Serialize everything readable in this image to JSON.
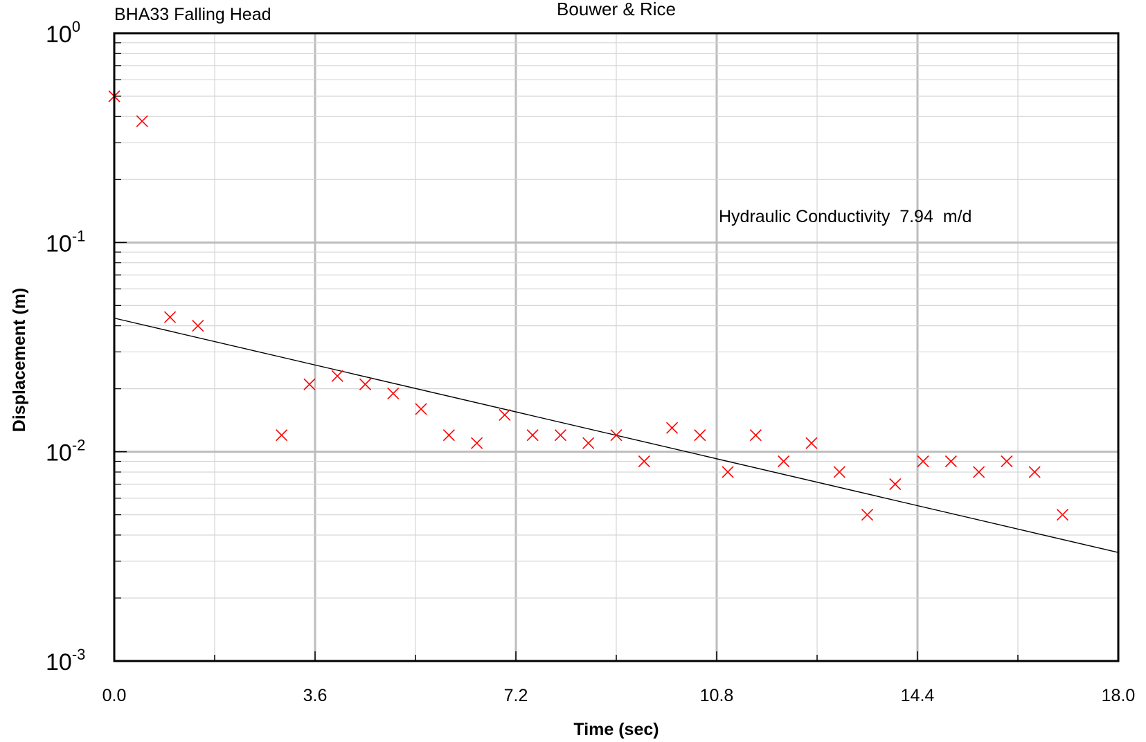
{
  "chart_data": {
    "type": "scatter",
    "title": "Bouwer & Rice",
    "subtitle": "BHA33 Falling Head",
    "xlabel": "Time (sec)",
    "ylabel": "Displacement (m)",
    "xlim": [
      0,
      18
    ],
    "ylim": [
      0.001,
      1
    ],
    "yscale": "log",
    "grid": true,
    "x_ticks": [
      "0.0",
      "3.6",
      "7.2",
      "10.8",
      "14.4",
      "18.0"
    ],
    "x_tick_values": [
      0,
      3.6,
      7.2,
      10.8,
      14.4,
      18.0
    ],
    "y_ticks": [
      {
        "base": "10",
        "exp": "0",
        "value": 1
      },
      {
        "base": "10",
        "exp": "-1",
        "value": 0.1
      },
      {
        "base": "10",
        "exp": "-2",
        "value": 0.01
      },
      {
        "base": "10",
        "exp": "-3",
        "value": 0.001
      }
    ],
    "annotation": "Hydraulic Conductivity  7.94  m/d",
    "marker_color": "#ff0000",
    "fit_line_color": "#000000",
    "observed": {
      "marker": "x",
      "x": [
        0.0,
        0.5,
        1.0,
        1.5,
        3.0,
        3.5,
        4.0,
        4.5,
        5.0,
        5.5,
        6.0,
        6.5,
        7.0,
        7.5,
        8.0,
        8.5,
        9.0,
        9.5,
        10.0,
        10.5,
        11.0,
        11.5,
        12.0,
        12.5,
        13.0,
        13.5,
        14.0,
        14.5,
        15.0,
        15.5,
        16.0,
        16.5,
        17.0
      ],
      "y": [
        0.5,
        0.38,
        0.044,
        0.04,
        0.012,
        0.021,
        0.023,
        0.021,
        0.019,
        0.016,
        0.012,
        0.011,
        0.015,
        0.012,
        0.012,
        0.011,
        0.012,
        0.009,
        0.013,
        0.012,
        0.008,
        0.012,
        0.009,
        0.011,
        0.008,
        0.005,
        0.007,
        0.009,
        0.009,
        0.008,
        0.009,
        0.008,
        0.005
      ]
    },
    "fit": {
      "x": [
        0,
        18
      ],
      "y": [
        0.0435,
        0.0033
      ]
    }
  }
}
